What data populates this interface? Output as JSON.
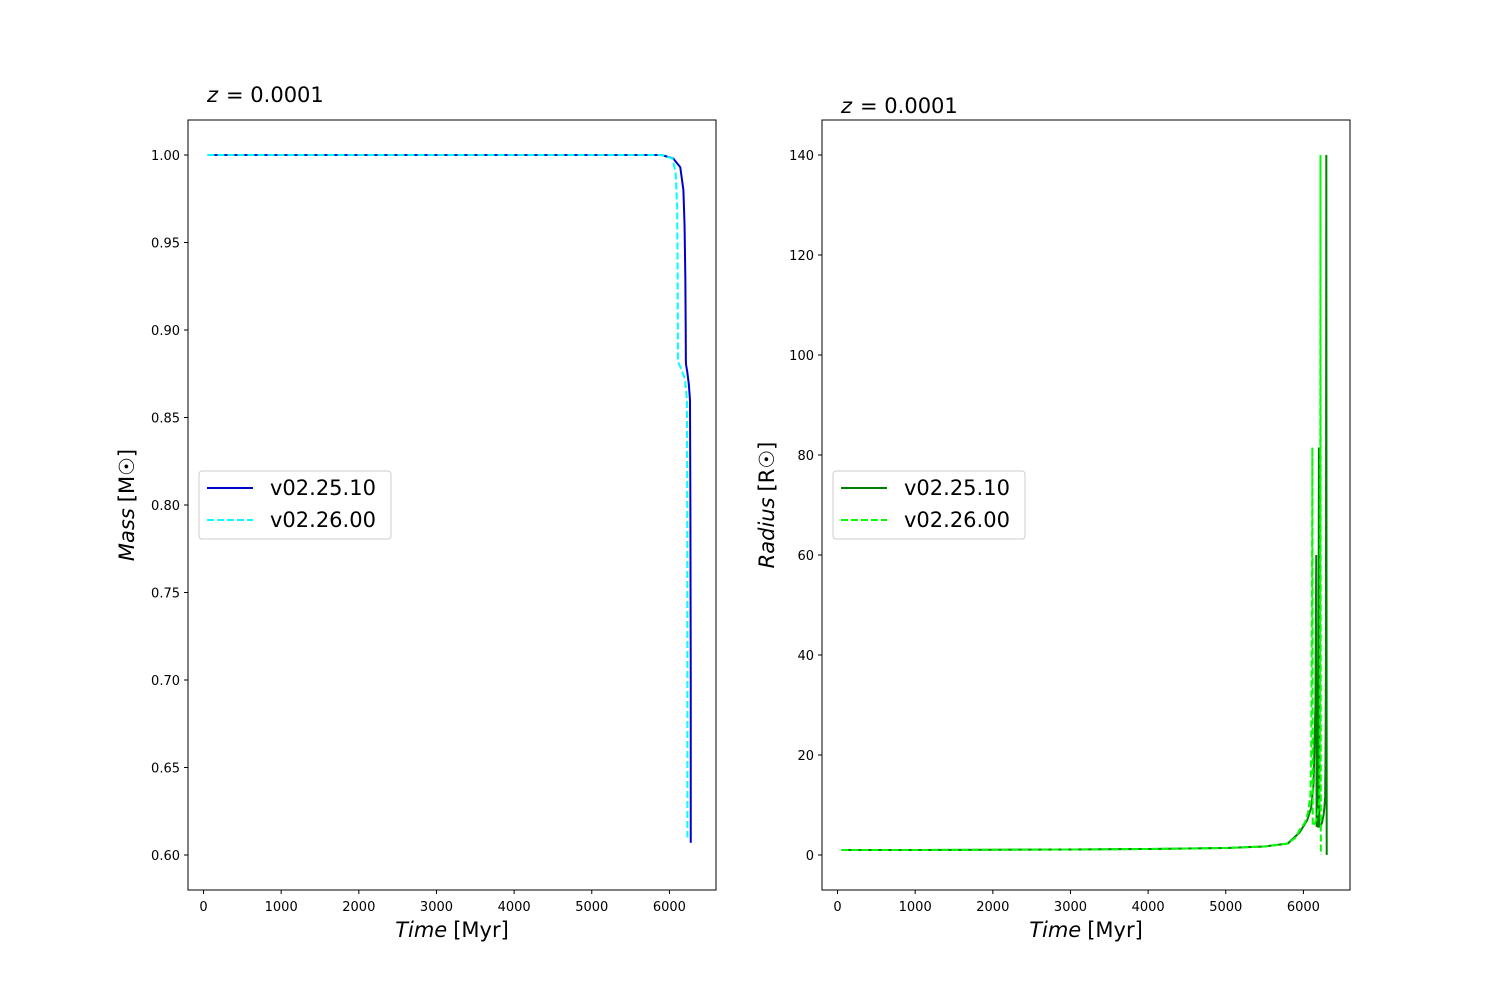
{
  "chart_data": [
    {
      "type": "line",
      "title": "z = 0.0001",
      "title_var": "z",
      "title_value": "= 0.0001",
      "xlabel": "Time [Myr]",
      "xlabel_var": "Time",
      "xlabel_unit": "[Myr]",
      "ylabel": "Mass [M☉]",
      "ylabel_var": "Mass",
      "ylabel_unit": "[M☉]",
      "xlim": [
        -200,
        6600
      ],
      "ylim": [
        0.58,
        1.02
      ],
      "xticks": [
        0,
        1000,
        2000,
        3000,
        4000,
        5000,
        6000
      ],
      "yticks": [
        0.6,
        0.65,
        0.7,
        0.75,
        0.8,
        0.85,
        0.9,
        0.95,
        1.0
      ],
      "ytick_labels": [
        "0.60",
        "0.65",
        "0.70",
        "0.75",
        "0.80",
        "0.85",
        "0.90",
        "0.95",
        "1.00"
      ],
      "legend_position": "center-left",
      "series": [
        {
          "name": "v02.25.10",
          "color": "#0000cd",
          "style": "solid",
          "x": [
            50,
            5900,
            6050,
            6140,
            6180,
            6195,
            6205,
            6210,
            6212,
            6215,
            6230,
            6250,
            6265,
            6270,
            6275,
            6275
          ],
          "y": [
            1.0,
            1.0,
            0.998,
            0.993,
            0.98,
            0.96,
            0.93,
            0.9,
            0.882,
            0.88,
            0.876,
            0.869,
            0.86,
            0.8,
            0.7,
            0.607
          ]
        },
        {
          "name": "v02.26.00",
          "color": "#00ffff",
          "style": "dashed",
          "x": [
            50,
            5900,
            6040,
            6080,
            6100,
            6105,
            6108,
            6110,
            6150,
            6200,
            6225,
            6230,
            6232,
            6232
          ],
          "y": [
            1.0,
            1.0,
            0.998,
            0.99,
            0.97,
            0.94,
            0.91,
            0.882,
            0.878,
            0.872,
            0.86,
            0.8,
            0.7,
            0.61
          ]
        }
      ]
    },
    {
      "type": "line",
      "title": "z = 0.0001",
      "title_var": "z",
      "title_value": "= 0.0001",
      "xlabel": "Time [Myr]",
      "xlabel_var": "Time",
      "xlabel_unit": "[Myr]",
      "ylabel": "Radius [R☉]",
      "ylabel_var": "Radius",
      "ylabel_unit": "[R☉]",
      "xlim": [
        -200,
        6600
      ],
      "ylim": [
        -7,
        147
      ],
      "xticks": [
        0,
        1000,
        2000,
        3000,
        4000,
        5000,
        6000
      ],
      "yticks": [
        0,
        20,
        40,
        60,
        80,
        100,
        120,
        140
      ],
      "ytick_labels": [
        "0",
        "20",
        "40",
        "60",
        "80",
        "100",
        "120",
        "140"
      ],
      "legend_position": "center-left",
      "series": [
        {
          "name": "v02.25.10",
          "color": "#008000",
          "style": "solid",
          "x": [
            50,
            1000,
            2000,
            3000,
            4000,
            5000,
            5500,
            5800,
            5950,
            6050,
            6100,
            6130,
            6155,
            6165,
            6170,
            6185,
            6195,
            6200,
            6205,
            6220,
            6240,
            6260,
            6270,
            6275,
            6280,
            6285,
            6290,
            6293,
            6295,
            6297,
            6300
          ],
          "y": [
            1.0,
            1.0,
            1.05,
            1.1,
            1.2,
            1.4,
            1.7,
            2.3,
            4.5,
            7.0,
            9.5,
            14,
            30,
            60,
            5.8,
            5.7,
            40,
            81.5,
            5.7,
            5.6,
            6.5,
            8.0,
            9.5,
            10.5,
            11.5,
            20,
            40,
            100,
            140,
            60,
            0.02
          ]
        },
        {
          "name": "v02.26.00",
          "color": "#00ff00",
          "style": "dashed",
          "x": [
            50,
            1000,
            2000,
            3000,
            4000,
            5000,
            5500,
            5800,
            5900,
            5950,
            6020,
            6060,
            6090,
            6100,
            6110,
            6115,
            6120,
            6125,
            6130,
            6140,
            6160,
            6180,
            6195,
            6205,
            6212,
            6217,
            6220,
            6222,
            6225
          ],
          "y": [
            1.0,
            1.0,
            1.05,
            1.1,
            1.2,
            1.4,
            1.7,
            2.3,
            3.5,
            5.0,
            6.5,
            8.5,
            12,
            20,
            50,
            81.5,
            6.0,
            5.8,
            5.9,
            6.2,
            6.8,
            8.0,
            9.5,
            11,
            25,
            70,
            140,
            60,
            0.02
          ]
        }
      ]
    }
  ]
}
